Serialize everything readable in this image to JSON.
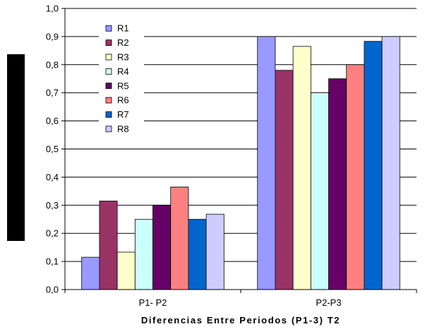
{
  "chart_data": {
    "type": "bar",
    "categories": [
      "P1- P2",
      "P2-P3"
    ],
    "xlabel": "Diferencias Entre Periodos (P1-3) T2",
    "ylabel": "",
    "ylim": [
      0,
      1.0
    ],
    "yticks": [
      "0,0",
      "0,1",
      "0,2",
      "0,3",
      "0,4",
      "0,5",
      "0,6",
      "0,7",
      "0,8",
      "0,9",
      "1,0"
    ],
    "grid": true,
    "legend_position": "top-left",
    "series": [
      {
        "name": "R1",
        "color": "#9999ff",
        "values": [
          0.115,
          0.9
        ]
      },
      {
        "name": "R2",
        "color": "#993366",
        "values": [
          0.315,
          0.78
        ]
      },
      {
        "name": "R3",
        "color": "#ffffcc",
        "values": [
          0.133,
          0.865
        ]
      },
      {
        "name": "R4",
        "color": "#ccffff",
        "values": [
          0.25,
          0.7
        ]
      },
      {
        "name": "R5",
        "color": "#660066",
        "values": [
          0.3,
          0.75
        ]
      },
      {
        "name": "R6",
        "color": "#ff8080",
        "values": [
          0.365,
          0.8
        ]
      },
      {
        "name": "R7",
        "color": "#0066cc",
        "values": [
          0.25,
          0.883
        ]
      },
      {
        "name": "R8",
        "color": "#ccccff",
        "values": [
          0.268,
          0.9
        ]
      }
    ]
  }
}
